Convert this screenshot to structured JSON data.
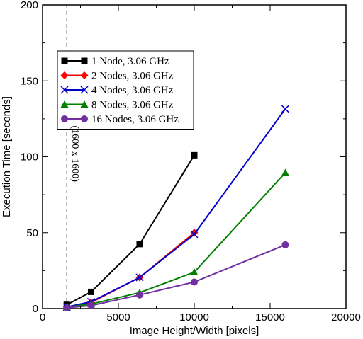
{
  "chart_data": {
    "type": "line",
    "xlabel": "Image Height/Width [pixels]",
    "ylabel": "Execution Time [seconds]",
    "xlim": [
      0,
      20000
    ],
    "ylim": [
      0,
      200
    ],
    "x_ticks": [
      0,
      5000,
      10000,
      15000,
      20000
    ],
    "y_ticks": [
      0,
      50,
      100,
      150,
      200
    ],
    "grid": false,
    "legend_placement": "top-left",
    "annotation": {
      "text": "(1600 x 1600)",
      "x": 1600,
      "style": "dashed vertical line"
    },
    "series": [
      {
        "name": "1 Node, 3.06 GHz",
        "color": "#000000",
        "marker": "square",
        "points": [
          [
            1600,
            2.5
          ],
          [
            3200,
            11
          ],
          [
            6400,
            42.5
          ],
          [
            10000,
            101
          ]
        ]
      },
      {
        "name": "2 Nodes, 3.06 GHz",
        "color": "#ff0000",
        "marker": "diamond",
        "points": [
          [
            1600,
            1
          ],
          [
            3200,
            4
          ],
          [
            6400,
            20.5
          ],
          [
            10000,
            50
          ]
        ]
      },
      {
        "name": "4 Nodes, 3.06 GHz",
        "color": "#0000cc",
        "marker": "x",
        "points": [
          [
            1600,
            1
          ],
          [
            3200,
            4.5
          ],
          [
            6400,
            20.5
          ],
          [
            10000,
            49
          ],
          [
            16000,
            131.5
          ]
        ]
      },
      {
        "name": "8 Nodes, 3.06 GHz",
        "color": "#008000",
        "marker": "triangle",
        "points": [
          [
            1600,
            1
          ],
          [
            3200,
            3
          ],
          [
            6400,
            10.5
          ],
          [
            10000,
            24
          ],
          [
            16000,
            89.5
          ]
        ]
      },
      {
        "name": "16 Nodes, 3.06 GHz",
        "color": "#7030a0",
        "marker": "circle",
        "points": [
          [
            1600,
            0.5
          ],
          [
            3200,
            2
          ],
          [
            6400,
            9
          ],
          [
            10000,
            17.5
          ],
          [
            16000,
            42
          ]
        ]
      }
    ]
  }
}
